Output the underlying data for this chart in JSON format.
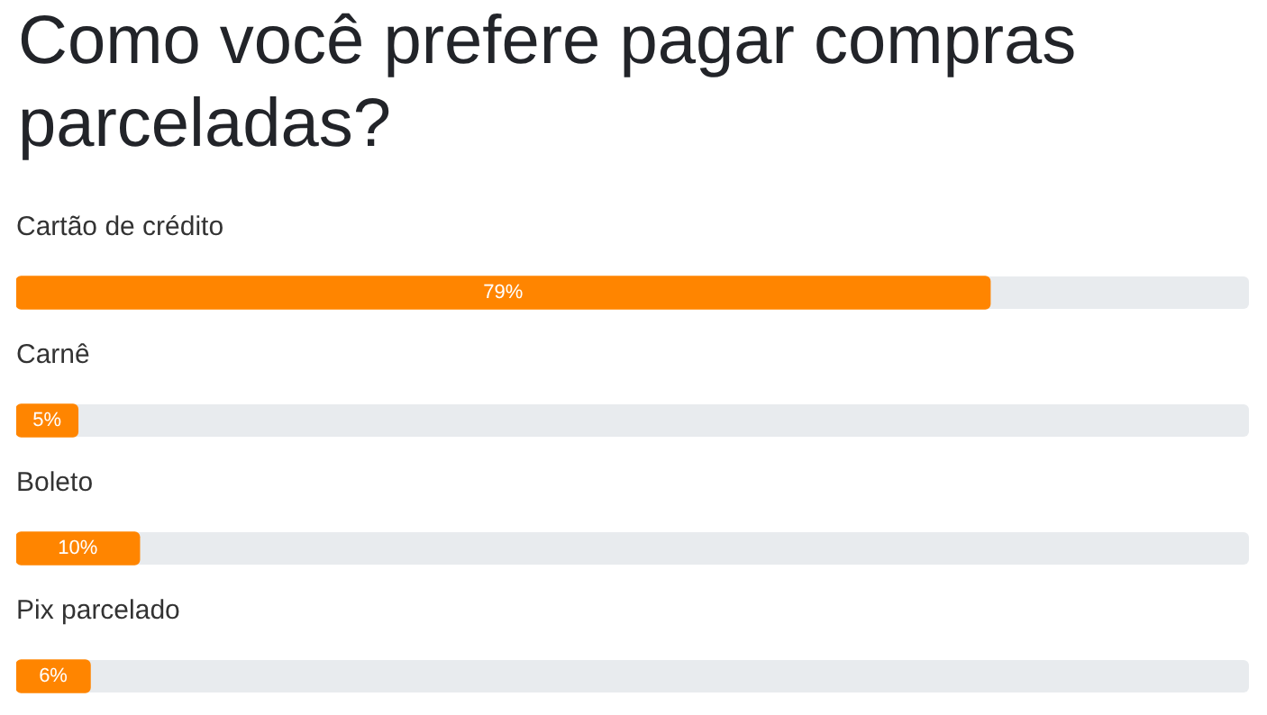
{
  "chart_data": {
    "type": "bar",
    "orientation": "horizontal",
    "title": "Como você prefere pagar compras parceladas?",
    "categories": [
      "Cartão de crédito",
      "Carnê",
      "Boleto",
      "Pix parcelado"
    ],
    "values": [
      79,
      5,
      10,
      6
    ],
    "value_labels": [
      "79%",
      "5%",
      "10%",
      "6%"
    ],
    "color": "#ff8500",
    "xlim": [
      0,
      100
    ],
    "tick_labels": false
  }
}
